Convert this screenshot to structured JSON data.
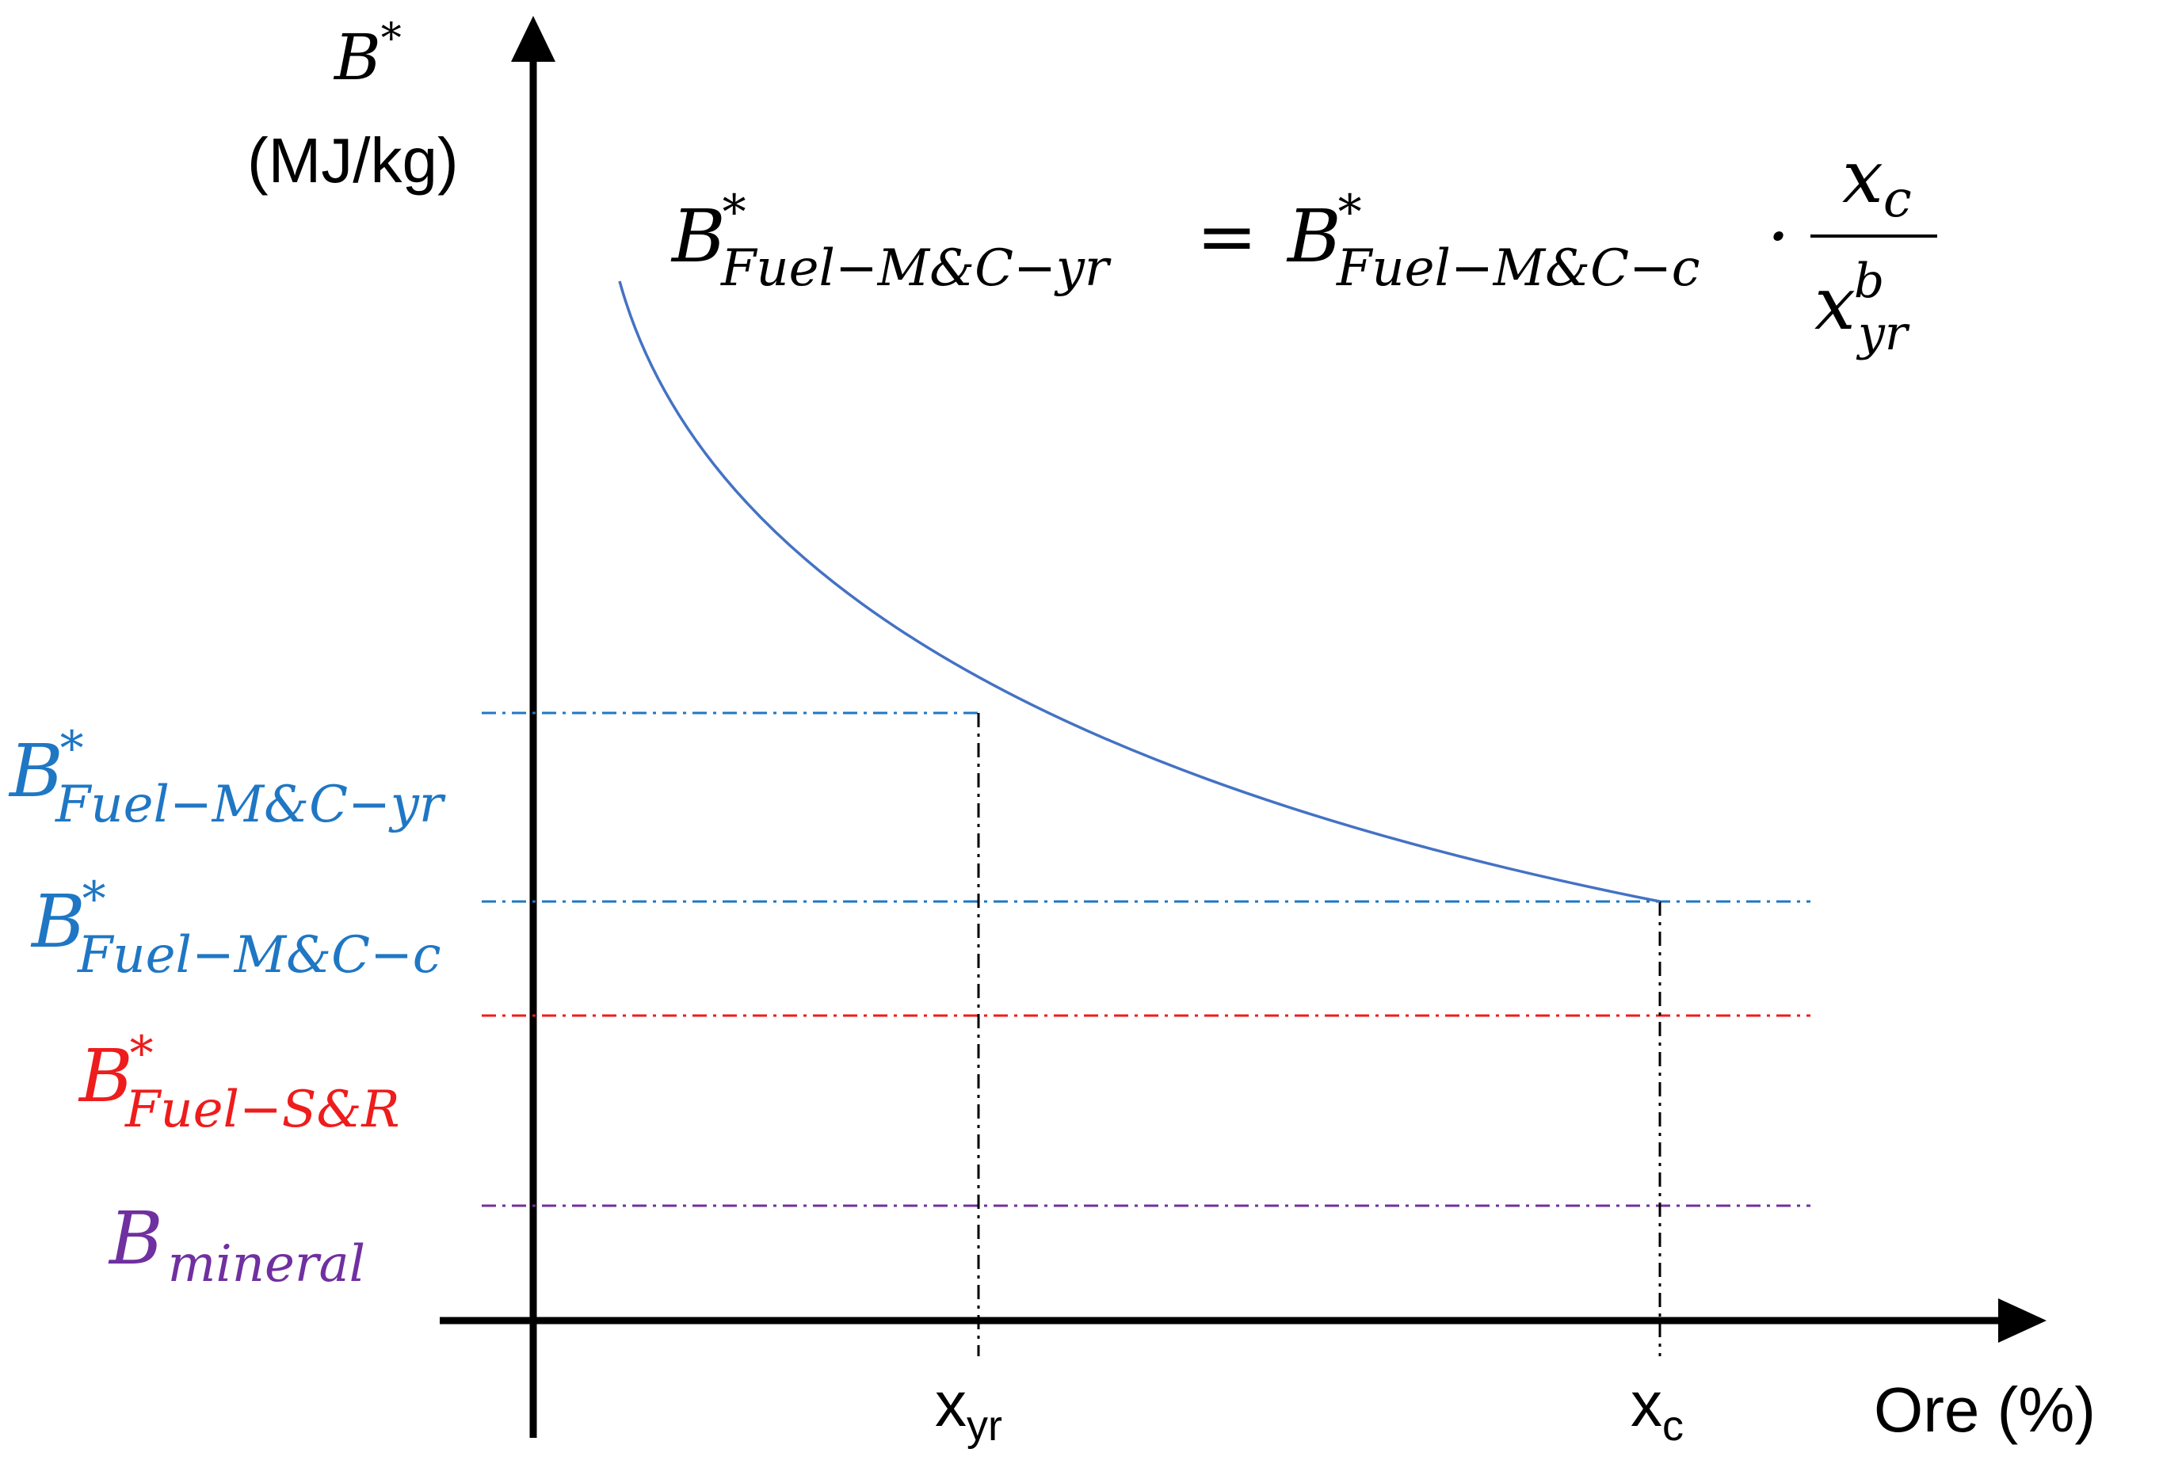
{
  "axes": {
    "y_symbol": "B",
    "y_symbol_sup": "*",
    "y_unit": "(MJ/kg)",
    "x_label": "Ore (%)"
  },
  "x_ticks": {
    "xyr": {
      "base": "x",
      "sub": "yr"
    },
    "xc": {
      "base": "x",
      "sub": "c"
    }
  },
  "levels": {
    "fuel_mc_yr": {
      "base": "B",
      "sup": "*",
      "sub": "Fuel−M&C−yr",
      "color": "#1F77C4"
    },
    "fuel_mc_c": {
      "base": "B",
      "sup": "*",
      "sub": "Fuel−M&C−c",
      "color": "#1F77C4"
    },
    "fuel_sr": {
      "base": "B",
      "sup": "*",
      "sub": "Fuel−S&R",
      "color": "#EE1C1C"
    },
    "mineral": {
      "base": "B",
      "sub": "mineral",
      "color": "#7030A0"
    }
  },
  "equation": {
    "lhs_base": "B",
    "lhs_sup": "*",
    "lhs_sub": "Fuel−M&C−yr",
    "equals": "=",
    "rhs_base": "B",
    "rhs_sup": "*",
    "rhs_sub": "Fuel−M&C−c",
    "dot": "·",
    "num_base": "x",
    "num_sub": "c",
    "den_base": "x",
    "den_sup": "b",
    "den_sub": "yr"
  },
  "curve": {
    "color": "#4472C4"
  },
  "colors": {
    "axis": "#000000",
    "guide": "#000000"
  }
}
